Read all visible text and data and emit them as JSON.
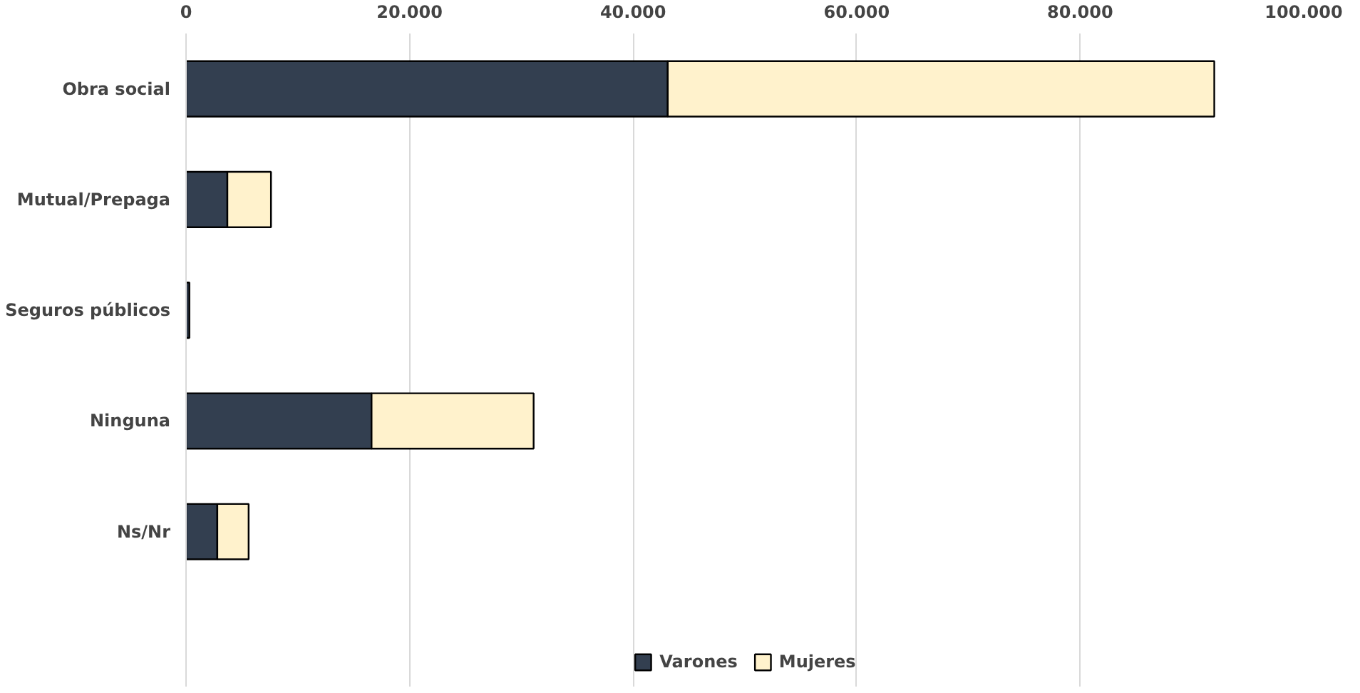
{
  "chart_data": {
    "type": "bar",
    "orientation": "horizontal",
    "stacked": true,
    "categories": [
      "Obra social",
      "Mutual/Prepaga",
      "Seguros públicos",
      "Ninguna",
      "Ns/Nr"
    ],
    "series": [
      {
        "name": "Varones",
        "color": "#333f50",
        "values": [
          43100,
          3700,
          300,
          16600,
          2800
        ]
      },
      {
        "name": "Mujeres",
        "color": "#fff2cc",
        "values": [
          48900,
          3900,
          null,
          14500,
          2800
        ]
      }
    ],
    "xlim": [
      0,
      100000
    ],
    "xticks": [
      {
        "value": 0,
        "label": "0"
      },
      {
        "value": 20000,
        "label": "20.000"
      },
      {
        "value": 40000,
        "label": "40.000"
      },
      {
        "value": 60000,
        "label": "60.000"
      },
      {
        "value": 80000,
        "label": "80.000"
      },
      {
        "value": 100000,
        "label": "100.000"
      }
    ],
    "grid": "x",
    "legend": "bottom"
  }
}
